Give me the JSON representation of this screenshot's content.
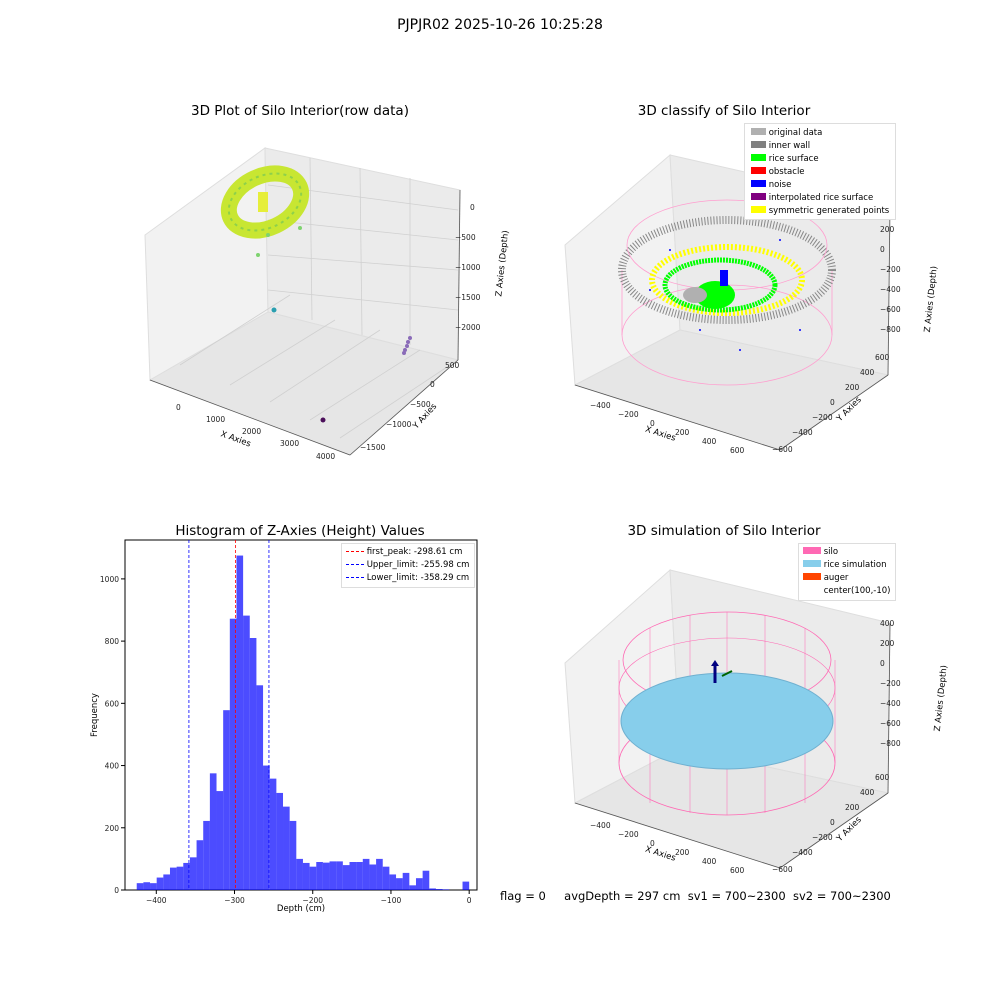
{
  "suptitle": "PJPJR02 2025-10-26 10:25:28",
  "status_text": {
    "flag": "flag = 0",
    "avg": "avgDepth = 297 cm",
    "sv1": "sv1 = 700~2300",
    "sv2": "sv2 = 700~2300"
  },
  "chart_data": [
    {
      "type": "scatter",
      "projection": "3d",
      "title": "3D Plot of Silo Interior(row data)",
      "xlabel": "X Axies",
      "ylabel": "Y Axies",
      "zlabel": "Z Axies (Depth)",
      "x_ticks": [
        "0",
        "1000",
        "2000",
        "3000",
        "4000"
      ],
      "y_ticks": [
        "500",
        "0",
        "−500",
        "−1000",
        "−1500"
      ],
      "z_ticks": [
        "0",
        "−500",
        "−1000",
        "−1500",
        "−2000"
      ],
      "grid": true
    },
    {
      "type": "scatter",
      "projection": "3d",
      "title": "3D classify of Silo Interior",
      "xlabel": "X Axies",
      "ylabel": "Y Axies",
      "zlabel": "Z Axies (Depth)",
      "x_ticks": [
        "−400",
        "−200",
        "0",
        "200",
        "400",
        "600"
      ],
      "y_ticks": [
        "600",
        "400",
        "200",
        "0",
        "−200",
        "−400",
        "−600"
      ],
      "z_ticks": [
        "200",
        "0",
        "−200",
        "−400",
        "−600",
        "−800"
      ],
      "legend_position": "top-right",
      "legend": [
        {
          "name": "original data",
          "color": "#b0b0b0"
        },
        {
          "name": "inner wall",
          "color": "#808080"
        },
        {
          "name": "rice surface",
          "color": "#00ff00"
        },
        {
          "name": "obstacle",
          "color": "#ff0000"
        },
        {
          "name": "noise",
          "color": "#0000ff"
        },
        {
          "name": "interpolated rice surface",
          "color": "#800080"
        },
        {
          "name": "symmetric generated points",
          "color": "#ffff00"
        }
      ],
      "grid": true
    },
    {
      "type": "bar",
      "title": "Histogram of Z-Axies (Height) Values",
      "xlabel": "Depth (cm)",
      "ylabel": "Frequency",
      "x_ticks": [
        -400,
        -300,
        -200,
        -100,
        0
      ],
      "y_ticks": [
        0,
        200,
        400,
        600,
        800,
        1000
      ],
      "xlim": [
        -440,
        10
      ],
      "ylim": [
        0,
        1125
      ],
      "bin_width": 8.5,
      "bin_start": -425,
      "bar_color": "#0000ff",
      "values": [
        22,
        25,
        22,
        40,
        50,
        72,
        75,
        87,
        105,
        160,
        222,
        375,
        318,
        578,
        872,
        1075,
        882,
        810,
        658,
        400,
        358,
        312,
        268,
        222,
        100,
        87,
        75,
        90,
        88,
        92,
        92,
        80,
        90,
        90,
        100,
        82,
        100,
        75,
        50,
        38,
        55,
        15,
        38,
        62,
        5,
        3,
        2,
        0,
        0,
        27
      ],
      "lines": [
        {
          "label": "first_peak: -298.61 cm",
          "x": -298.61,
          "color": "#ff0000"
        },
        {
          "label": "Upper_limit: -255.98 cm",
          "x": -255.98,
          "color": "#0000ff"
        },
        {
          "label": "Lower_limit: -358.29 cm",
          "x": -358.29,
          "color": "#0000ff"
        }
      ],
      "legend_position": "top-right"
    },
    {
      "type": "scatter",
      "projection": "3d",
      "title": "3D simulation of Silo Interior",
      "xlabel": "X Axies",
      "ylabel": "Y Axies",
      "zlabel": "Z Axies (Depth)",
      "x_ticks": [
        "−400",
        "−200",
        "0",
        "200",
        "400",
        "600"
      ],
      "y_ticks": [
        "600",
        "400",
        "200",
        "0",
        "−200",
        "−400",
        "−600"
      ],
      "z_ticks": [
        "400",
        "200",
        "0",
        "−200",
        "−400",
        "−600",
        "−800"
      ],
      "legend_position": "top-right",
      "legend": [
        {
          "name": "silo",
          "color": "#ff69b4"
        },
        {
          "name": "rice simulation",
          "color": "#87ceeb"
        },
        {
          "name": "auger",
          "color": "#ff4500"
        },
        {
          "name": "center(100,-10)",
          "color": "#ffffff"
        }
      ],
      "grid": true
    }
  ]
}
